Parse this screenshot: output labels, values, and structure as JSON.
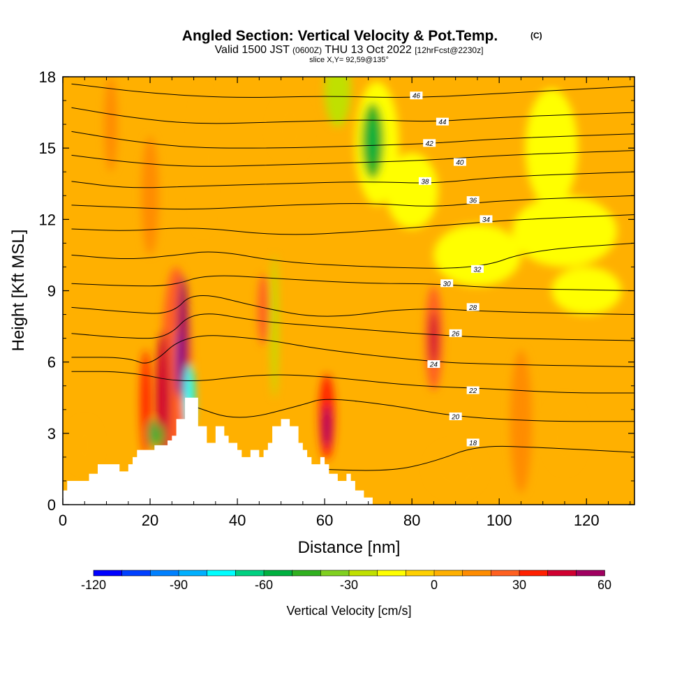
{
  "chart_data": {
    "type": "heatmap",
    "title": "Angled Section: Vertical Velocity & Pot.Temp.",
    "title_mark": "(C)",
    "subtitle_pre": "Valid 1500 JST",
    "subtitle_utc": "(0600Z)",
    "subtitle_date": "THU 13 Oct 2022",
    "subtitle_fcst": "[12hrFcst@2230z]",
    "slice_label": "slice X,Y= 92,59@135°",
    "xlabel": "Distance [nm]",
    "ylabel": "Height [Kft MSL]",
    "xlim": [
      0,
      131
    ],
    "ylim": [
      0,
      18
    ],
    "x_ticks": [
      0,
      20,
      40,
      60,
      80,
      100,
      120
    ],
    "y_ticks": [
      0,
      3,
      6,
      9,
      12,
      15,
      18
    ],
    "x_tick_labels": [
      "0",
      "20",
      "40",
      "60",
      "80",
      "100",
      "120"
    ],
    "y_tick_labels": [
      "0",
      "3",
      "6",
      "9",
      "12",
      "15",
      "18"
    ],
    "colorbar": {
      "label": "Vertical Velocity [cm/s]",
      "min": -120,
      "max": 60,
      "step": 10,
      "tick_values": [
        -120,
        -90,
        -60,
        -30,
        0,
        30,
        60
      ],
      "tick_labels": [
        "-120",
        "-90",
        "-60",
        "-30",
        "0",
        "30",
        "60"
      ],
      "colors": [
        "#0000ff",
        "#0040ff",
        "#0080ff",
        "#00b0ff",
        "#00ffff",
        "#00d080",
        "#00b040",
        "#30b020",
        "#80d020",
        "#c0e000",
        "#ffff00",
        "#ffd000",
        "#ffb000",
        "#ff8c00",
        "#ff6020",
        "#ff2000",
        "#d00030",
        "#a00060",
        "#7000a0"
      ]
    },
    "terrain": [
      [
        0,
        0.6
      ],
      [
        1,
        0.6
      ],
      [
        1,
        1
      ],
      [
        6,
        1
      ],
      [
        6,
        1.3
      ],
      [
        8,
        1.3
      ],
      [
        8,
        1.7
      ],
      [
        13,
        1.7
      ],
      [
        13,
        1.4
      ],
      [
        15,
        1.4
      ],
      [
        15,
        1.7
      ],
      [
        16,
        1.7
      ],
      [
        16,
        2
      ],
      [
        17,
        2
      ],
      [
        17,
        2.3
      ],
      [
        21,
        2.3
      ],
      [
        21,
        2.5
      ],
      [
        24,
        2.5
      ],
      [
        24,
        2.7
      ],
      [
        25,
        2.7
      ],
      [
        25,
        2.9
      ],
      [
        26,
        2.9
      ],
      [
        26,
        3.6
      ],
      [
        28,
        3.6
      ],
      [
        28,
        4.5
      ],
      [
        31,
        4.5
      ],
      [
        31,
        3.3
      ],
      [
        33,
        3.3
      ],
      [
        33,
        2.6
      ],
      [
        35,
        2.6
      ],
      [
        35,
        3.3
      ],
      [
        37,
        3.3
      ],
      [
        37,
        2.9
      ],
      [
        38,
        2.9
      ],
      [
        38,
        2.6
      ],
      [
        40,
        2.6
      ],
      [
        40,
        2.3
      ],
      [
        41,
        2.3
      ],
      [
        41,
        2
      ],
      [
        43,
        2
      ],
      [
        43,
        2.3
      ],
      [
        45,
        2.3
      ],
      [
        45,
        2
      ],
      [
        46,
        2
      ],
      [
        46,
        2.3
      ],
      [
        47,
        2.3
      ],
      [
        47,
        2.6
      ],
      [
        48,
        2.6
      ],
      [
        48,
        3.3
      ],
      [
        50,
        3.3
      ],
      [
        50,
        3.6
      ],
      [
        52,
        3.6
      ],
      [
        52,
        3.3
      ],
      [
        54,
        3.3
      ],
      [
        54,
        2.6
      ],
      [
        55,
        2.6
      ],
      [
        55,
        2.3
      ],
      [
        56,
        2.3
      ],
      [
        56,
        2
      ],
      [
        57,
        2
      ],
      [
        57,
        1.7
      ],
      [
        59,
        1.7
      ],
      [
        59,
        2
      ],
      [
        60,
        2
      ],
      [
        60,
        1.7
      ],
      [
        61,
        1.7
      ],
      [
        61,
        1.3
      ],
      [
        63,
        1.3
      ],
      [
        63,
        1
      ],
      [
        65,
        1
      ],
      [
        65,
        1.3
      ],
      [
        66,
        1.3
      ],
      [
        66,
        1
      ],
      [
        67,
        1
      ],
      [
        67,
        0.6
      ],
      [
        69,
        0.6
      ],
      [
        69,
        0.3
      ],
      [
        71,
        0.3
      ],
      [
        71,
        0
      ],
      [
        0,
        0
      ]
    ],
    "velocity_blobs": [
      {
        "x": 72,
        "y": 15.2,
        "rx": 5,
        "ry": 2.6,
        "v": -18
      },
      {
        "x": 71,
        "y": 15.3,
        "rx": 2.5,
        "ry": 1.6,
        "v": -45
      },
      {
        "x": 71,
        "y": 15.3,
        "rx": 1,
        "ry": 0.9,
        "v": -60
      },
      {
        "x": 80,
        "y": 13.2,
        "rx": 6,
        "ry": 1.6,
        "v": -20
      },
      {
        "x": 63,
        "y": 17.4,
        "rx": 3,
        "ry": 1.5,
        "v": -22
      },
      {
        "x": 52,
        "y": 15.8,
        "rx": 4,
        "ry": 1.2,
        "v": 0
      },
      {
        "x": 20,
        "y": 13,
        "rx": 2,
        "ry": 2.5,
        "v": 10
      },
      {
        "x": 11,
        "y": 16,
        "rx": 1.5,
        "ry": 2,
        "v": 10
      },
      {
        "x": 26,
        "y": 5.5,
        "rx": 3.5,
        "ry": 4.5,
        "v": 20
      },
      {
        "x": 27.5,
        "y": 7,
        "rx": 1.3,
        "ry": 2.6,
        "v": 50
      },
      {
        "x": 26.5,
        "y": 6,
        "rx": 0.6,
        "ry": 1.4,
        "v": 60
      },
      {
        "x": 23,
        "y": 4.5,
        "rx": 1.6,
        "ry": 2.8,
        "v": 40
      },
      {
        "x": 29,
        "y": 4.5,
        "rx": 1.2,
        "ry": 1.4,
        "v": -80
      },
      {
        "x": 19,
        "y": 4.3,
        "rx": 1.2,
        "ry": 2.2,
        "v": 30
      },
      {
        "x": 20.5,
        "y": 3,
        "rx": 1,
        "ry": 0.6,
        "v": -60
      },
      {
        "x": 22.5,
        "y": 2.9,
        "rx": 0.7,
        "ry": 0.5,
        "v": -50
      },
      {
        "x": 46,
        "y": 8.2,
        "rx": 1.3,
        "ry": 1.5,
        "v": 25
      },
      {
        "x": 48.5,
        "y": 7.5,
        "rx": 0.8,
        "ry": 3,
        "v": -25
      },
      {
        "x": 60.5,
        "y": 3.7,
        "rx": 1.8,
        "ry": 1.8,
        "v": 30
      },
      {
        "x": 60.5,
        "y": 3.3,
        "rx": 0.9,
        "ry": 0.9,
        "v": 50
      },
      {
        "x": 85,
        "y": 7,
        "rx": 2,
        "ry": 2.2,
        "v": 25
      },
      {
        "x": 85,
        "y": 7,
        "rx": 1,
        "ry": 1.1,
        "v": 40
      },
      {
        "x": 105,
        "y": 3.5,
        "rx": 2.5,
        "ry": 3,
        "v": 15
      },
      {
        "x": 95,
        "y": 10.5,
        "rx": 10,
        "ry": 1.3,
        "v": -18
      },
      {
        "x": 115,
        "y": 11.5,
        "rx": 12,
        "ry": 1.5,
        "v": -12
      },
      {
        "x": 120,
        "y": 9,
        "rx": 8,
        "ry": 1,
        "v": -20
      },
      {
        "x": 112,
        "y": 15,
        "rx": 6,
        "ry": 2.5,
        "v": -12
      },
      {
        "x": 32,
        "y": 14.5,
        "rx": 2,
        "ry": 3,
        "v": 8
      },
      {
        "x": 5,
        "y": 2.5,
        "rx": 3,
        "ry": 1,
        "v": 8
      },
      {
        "x": 115,
        "y": 3,
        "rx": 4,
        "ry": 1.5,
        "v": 8
      },
      {
        "x": 90,
        "y": 1.5,
        "rx": 6,
        "ry": 1,
        "v": 8
      }
    ],
    "potential_temperature_contours": [
      {
        "label": "18",
        "points": [
          [
            57,
            1.5
          ],
          [
            75,
            1.4
          ],
          [
            85,
            1.8
          ],
          [
            95,
            2.5
          ],
          [
            110,
            2.4
          ],
          [
            131,
            2.2
          ]
        ],
        "label_at": [
          94,
          2.6
        ]
      },
      {
        "label": "20",
        "points": [
          [
            29,
            4.2
          ],
          [
            40,
            3.5
          ],
          [
            55,
            4.2
          ],
          [
            60,
            4.5
          ],
          [
            75,
            4.2
          ],
          [
            90,
            3.7
          ],
          [
            110,
            3.5
          ],
          [
            131,
            3.5
          ]
        ],
        "label_at": [
          90,
          3.7
        ]
      },
      {
        "label": "22",
        "points": [
          [
            2,
            5.6
          ],
          [
            15,
            5.6
          ],
          [
            28,
            5.1
          ],
          [
            45,
            5.5
          ],
          [
            60,
            5.4
          ],
          [
            80,
            5
          ],
          [
            95,
            4.9
          ],
          [
            115,
            4.7
          ],
          [
            131,
            4.7
          ]
        ],
        "label_at": [
          94,
          4.8
        ]
      },
      {
        "label": "24",
        "points": [
          [
            2,
            6.2
          ],
          [
            15,
            6.2
          ],
          [
            20,
            5.8
          ],
          [
            28,
            7.2
          ],
          [
            45,
            7
          ],
          [
            60,
            6.5
          ],
          [
            85,
            6
          ],
          [
            100,
            5.9
          ],
          [
            131,
            5.8
          ]
        ],
        "label_at": [
          85,
          5.9
        ]
      },
      {
        "label": "26",
        "points": [
          [
            2,
            7.2
          ],
          [
            15,
            7
          ],
          [
            24,
            7
          ],
          [
            30,
            8.2
          ],
          [
            45,
            7.7
          ],
          [
            60,
            7.5
          ],
          [
            80,
            7.2
          ],
          [
            100,
            7
          ],
          [
            131,
            6.9
          ]
        ],
        "label_at": [
          90,
          7.2
        ]
      },
      {
        "label": "28",
        "points": [
          [
            2,
            8.3
          ],
          [
            15,
            8.1
          ],
          [
            25,
            8
          ],
          [
            30,
            9
          ],
          [
            45,
            8.3
          ],
          [
            60,
            7.8
          ],
          [
            80,
            8.3
          ],
          [
            100,
            8.1
          ],
          [
            131,
            8
          ]
        ],
        "label_at": [
          94,
          8.3
        ]
      },
      {
        "label": "30",
        "points": [
          [
            2,
            9.3
          ],
          [
            15,
            9.2
          ],
          [
            25,
            9.2
          ],
          [
            33,
            9.7
          ],
          [
            50,
            9.5
          ],
          [
            70,
            9.3
          ],
          [
            85,
            9.3
          ],
          [
            100,
            9.1
          ],
          [
            131,
            9
          ]
        ],
        "label_at": [
          88,
          9.3
        ]
      },
      {
        "label": "32",
        "points": [
          [
            2,
            10.5
          ],
          [
            15,
            10.3
          ],
          [
            26,
            10.5
          ],
          [
            35,
            10.7
          ],
          [
            50,
            10.2
          ],
          [
            70,
            10
          ],
          [
            95,
            9.9
          ],
          [
            107,
            10.7
          ],
          [
            131,
            11
          ]
        ],
        "label_at": [
          95,
          9.9
        ]
      },
      {
        "label": "34",
        "points": [
          [
            2,
            11.6
          ],
          [
            15,
            11.5
          ],
          [
            30,
            11.7
          ],
          [
            50,
            11.3
          ],
          [
            70,
            11.5
          ],
          [
            90,
            11.8
          ],
          [
            105,
            12
          ],
          [
            131,
            12.2
          ]
        ],
        "label_at": [
          97,
          12
        ]
      },
      {
        "label": "36",
        "points": [
          [
            2,
            12.6
          ],
          [
            15,
            12.5
          ],
          [
            30,
            12.4
          ],
          [
            50,
            12.6
          ],
          [
            70,
            12.7
          ],
          [
            85,
            12.5
          ],
          [
            100,
            12.8
          ],
          [
            131,
            13
          ]
        ],
        "label_at": [
          94,
          12.8
        ]
      },
      {
        "label": "38",
        "points": [
          [
            2,
            13.6
          ],
          [
            15,
            13.3
          ],
          [
            30,
            13.4
          ],
          [
            50,
            13.5
          ],
          [
            70,
            13.6
          ],
          [
            85,
            13.5
          ],
          [
            100,
            13.8
          ],
          [
            131,
            14
          ]
        ],
        "label_at": [
          83,
          13.6
        ]
      },
      {
        "label": "40",
        "points": [
          [
            2,
            14.7
          ],
          [
            15,
            14.4
          ],
          [
            30,
            14.2
          ],
          [
            50,
            14.3
          ],
          [
            70,
            14.4
          ],
          [
            85,
            14.5
          ],
          [
            100,
            14.7
          ],
          [
            131,
            14.9
          ]
        ],
        "label_at": [
          91,
          14.4
        ]
      },
      {
        "label": "42",
        "points": [
          [
            2,
            15.7
          ],
          [
            15,
            15.3
          ],
          [
            30,
            15
          ],
          [
            50,
            15
          ],
          [
            70,
            15.1
          ],
          [
            85,
            15.2
          ],
          [
            100,
            15.4
          ],
          [
            131,
            15.6
          ]
        ],
        "label_at": [
          84,
          15.2
        ]
      },
      {
        "label": "44",
        "points": [
          [
            2,
            16.7
          ],
          [
            15,
            16.3
          ],
          [
            30,
            16
          ],
          [
            50,
            16.1
          ],
          [
            70,
            16.2
          ],
          [
            85,
            16.1
          ],
          [
            100,
            16.3
          ],
          [
            131,
            16.5
          ]
        ],
        "label_at": [
          87,
          16.1
        ]
      },
      {
        "label": "46",
        "points": [
          [
            2,
            17.7
          ],
          [
            20,
            17.3
          ],
          [
            40,
            17.1
          ],
          [
            60,
            17.2
          ],
          [
            80,
            17.1
          ],
          [
            100,
            17.3
          ],
          [
            131,
            17.6
          ]
        ],
        "label_at": [
          81,
          17.2
        ]
      }
    ]
  }
}
